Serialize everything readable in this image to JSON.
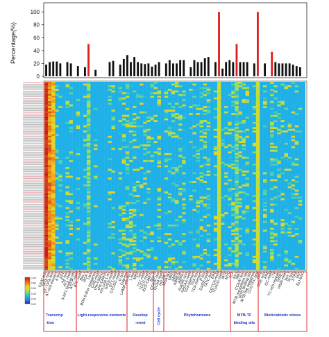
{
  "chart_data": [
    {
      "type": "bar",
      "ylabel": "Percentage(%)",
      "yticks": [
        0,
        20,
        40,
        60,
        80,
        100
      ],
      "ylim": [
        0,
        112
      ],
      "grid": false,
      "colors": {
        "normal": "#111111",
        "highlight": "#e02020"
      },
      "values": [
        18,
        22,
        23,
        23,
        20,
        0,
        22,
        20,
        0,
        16,
        0,
        14,
        50,
        0,
        10,
        0,
        0,
        0,
        22,
        24,
        0,
        18,
        27,
        33,
        22,
        30,
        22,
        20,
        19,
        20,
        15,
        18,
        22,
        0,
        20,
        25,
        20,
        20,
        25,
        25,
        0,
        14,
        25,
        22,
        22,
        28,
        30,
        0,
        22,
        100,
        12,
        22,
        25,
        22,
        50,
        22,
        22,
        22,
        0,
        20,
        100,
        0,
        20,
        0,
        38,
        22,
        20,
        20,
        20,
        20,
        18,
        16,
        14,
        0
      ],
      "highlight_indices": [
        12,
        49,
        54,
        60,
        64
      ]
    },
    {
      "type": "heatmap",
      "rows": 108,
      "columns": 74,
      "colorbar_ticks": [
        "1.00",
        "0.80",
        "0.60",
        "0.40",
        "0.20",
        "0.00"
      ],
      "colorscale": [
        "#2a1a9a",
        "#2f6ce0",
        "#1fb0e8",
        "#4fd2a8",
        "#b8e23c",
        "#f2d020",
        "#f07818",
        "#c81818"
      ],
      "column_labels": [
        "CAAT-box",
        "TATA-box",
        "AT~TATA-box",
        "AT-rich element",
        "A-box",
        "ACE",
        "AE-box",
        "AT1-motif",
        "3-AF1 binding site",
        "ATCT-motif",
        "ATC-motif",
        "Box 4",
        "BOX II",
        "I-box",
        "BOX 8-Box sequence",
        "CAG-motif",
        "chs-CMA1a",
        "chs-CMA2a",
        "chs-Unit 1 m1",
        "GATA-motif",
        "GT1-motif",
        "GTGGC-motif",
        "G-box",
        "Gap-box",
        "LAMP-element",
        "L-box",
        "MRE",
        "Sp1",
        "TCT-motif",
        "TCCC-motif",
        "rbcS-CMA7a",
        "Box III",
        "CCAAT-box",
        "GCN4 motif",
        "HD-Zip 1",
        "MSA-like",
        "MBSI",
        "ABRE",
        "ABRE3a",
        "ABRE4",
        "AuxRR-core",
        "AAGAA-motif",
        "TGA-element",
        "TGA-box",
        "TCA-element",
        "P-box",
        "GARE-motif",
        "TATC-box",
        "ERE",
        "CGTCA-motif",
        "TGACG-motif",
        "MYB",
        "MYC",
        "TCA",
        "As-1",
        "MBS",
        "CCAAT-box",
        "MYB recognition site",
        "MYB binding site",
        "MYB-like sequence",
        "CCGTCC-box",
        "DRE",
        "DRE core",
        "ARE",
        "GC-motif",
        "LTR",
        "TC-rich repeats",
        "WRE3",
        "WUN-motif",
        "box S",
        "W box",
        "STRE",
        "Myb",
        "ELI-box3"
      ],
      "categories": [
        {
          "name": "Transcrip-tion"
        },
        {
          "name": "Light-responsive elements"
        },
        {
          "name": "Develop-ment"
        },
        {
          "name": "Cell cycle"
        },
        {
          "name": "Phytohormone"
        },
        {
          "name": "MYB-TF binding site"
        },
        {
          "name": "Biotic/abiotic stress"
        }
      ]
    }
  ]
}
